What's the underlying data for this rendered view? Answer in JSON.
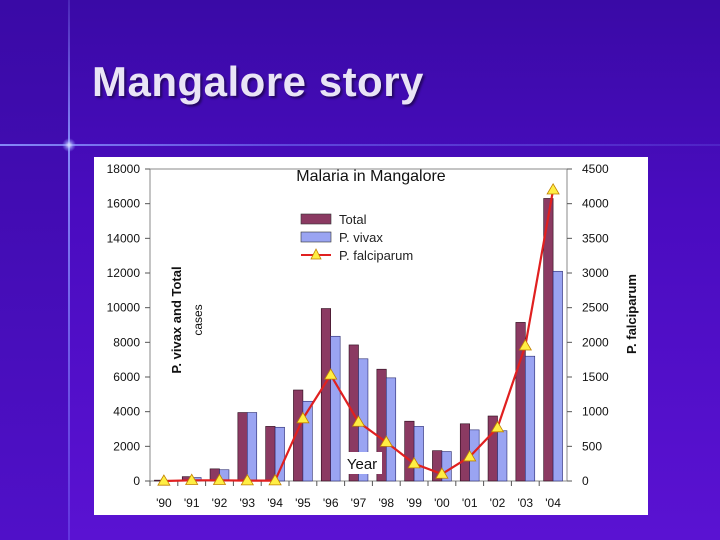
{
  "slide": {
    "title": "Mangalore story"
  },
  "colors": {
    "total": "#8b3a62",
    "vivax": "#9aa4f2",
    "falciparum_line": "#e02020",
    "falciparum_marker": "#ffee44"
  },
  "chart_data": {
    "type": "bar",
    "title": "Malaria in Mangalore",
    "xlabel": "Year",
    "ylabel_left_line1": "P. vivax and Total",
    "ylabel_left_line2": "cases",
    "ylabel_right": "P. falciparum",
    "categories": [
      "'90",
      "'91",
      "'92",
      "'93",
      "'94",
      "'95",
      "'96",
      "'97",
      "'98",
      "'99",
      "'00",
      "'01",
      "'02",
      "'03",
      "'04"
    ],
    "ylim_left": [
      0,
      18000
    ],
    "ylim_right": [
      0,
      4500
    ],
    "left_ticks": [
      "0",
      "2000",
      "4000",
      "6000",
      "8000",
      "10000",
      "12000",
      "14000",
      "16000",
      "18000"
    ],
    "right_ticks": [
      "0",
      "500",
      "1000",
      "1500",
      "2000",
      "2500",
      "3000",
      "3500",
      "4000",
      "4500"
    ],
    "series": [
      {
        "name": "Total",
        "axis": "left",
        "kind": "bar",
        "values": [
          50,
          250,
          700,
          3950,
          3150,
          5250,
          9950,
          7850,
          6450,
          3450,
          1750,
          3300,
          3750,
          9150,
          16300
        ]
      },
      {
        "name": "P. vivax",
        "axis": "left",
        "kind": "bar",
        "values": [
          40,
          200,
          650,
          3950,
          3100,
          4600,
          8350,
          7050,
          5950,
          3150,
          1700,
          2950,
          2900,
          7200,
          12100
        ]
      },
      {
        "name": "P. falciparum",
        "axis": "right",
        "kind": "line",
        "values": [
          0,
          10,
          10,
          5,
          5,
          900,
          1530,
          850,
          560,
          250,
          100,
          350,
          770,
          1950,
          4200
        ]
      }
    ],
    "legend": [
      "Total",
      "P. vivax",
      "P. falciparum"
    ],
    "legend_position": "top-left inside plot"
  }
}
